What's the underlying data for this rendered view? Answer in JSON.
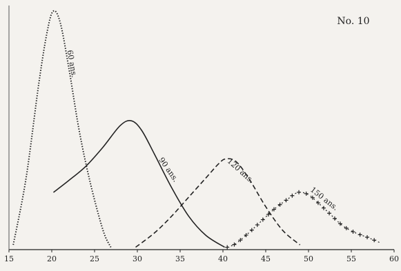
{
  "chart_data": {
    "type": "line",
    "title": "No. 10",
    "xlabel": "",
    "ylabel": "",
    "xlim": [
      15,
      60
    ],
    "ylim": [
      0,
      100
    ],
    "x_ticks": [
      15,
      20,
      25,
      30,
      35,
      40,
      45,
      50,
      55,
      60
    ],
    "grid": false,
    "series": [
      {
        "name": "60 ans.",
        "style": "dotted",
        "x": [
          15.5,
          17,
          18.5,
          19.5,
          20.2,
          21,
          22,
          23.2,
          24.5,
          26,
          26.9
        ],
        "y": [
          2,
          30,
          70,
          92,
          100,
          95,
          76,
          50,
          28,
          8,
          1
        ]
      },
      {
        "name": "90 ans.",
        "style": "solid",
        "x": [
          20.2,
          22,
          24,
          26,
          28,
          29.3,
          30.5,
          32,
          34,
          36,
          38,
          40.2
        ],
        "y": [
          24,
          29,
          35,
          43,
          52,
          54,
          50,
          40,
          26,
          14,
          6,
          1
        ]
      },
      {
        "name": "120 ans.",
        "style": "dashed",
        "x": [
          29.8,
          32,
          34,
          36,
          38,
          39.5,
          40.3,
          41.5,
          43,
          45,
          47,
          49
        ],
        "y": [
          1,
          7,
          14,
          22,
          30,
          36,
          38,
          37,
          30,
          18,
          8,
          2
        ]
      },
      {
        "name": "150 ans.",
        "style": "crosses",
        "x": [
          40.5,
          41.5,
          43,
          44.5,
          46,
          47.5,
          48.8,
          50,
          51,
          52.5,
          54,
          55.5,
          57,
          58.3
        ],
        "y": [
          1,
          2.5,
          7,
          12,
          17,
          21,
          24,
          23,
          20,
          15,
          10,
          7,
          5,
          3
        ]
      }
    ]
  }
}
